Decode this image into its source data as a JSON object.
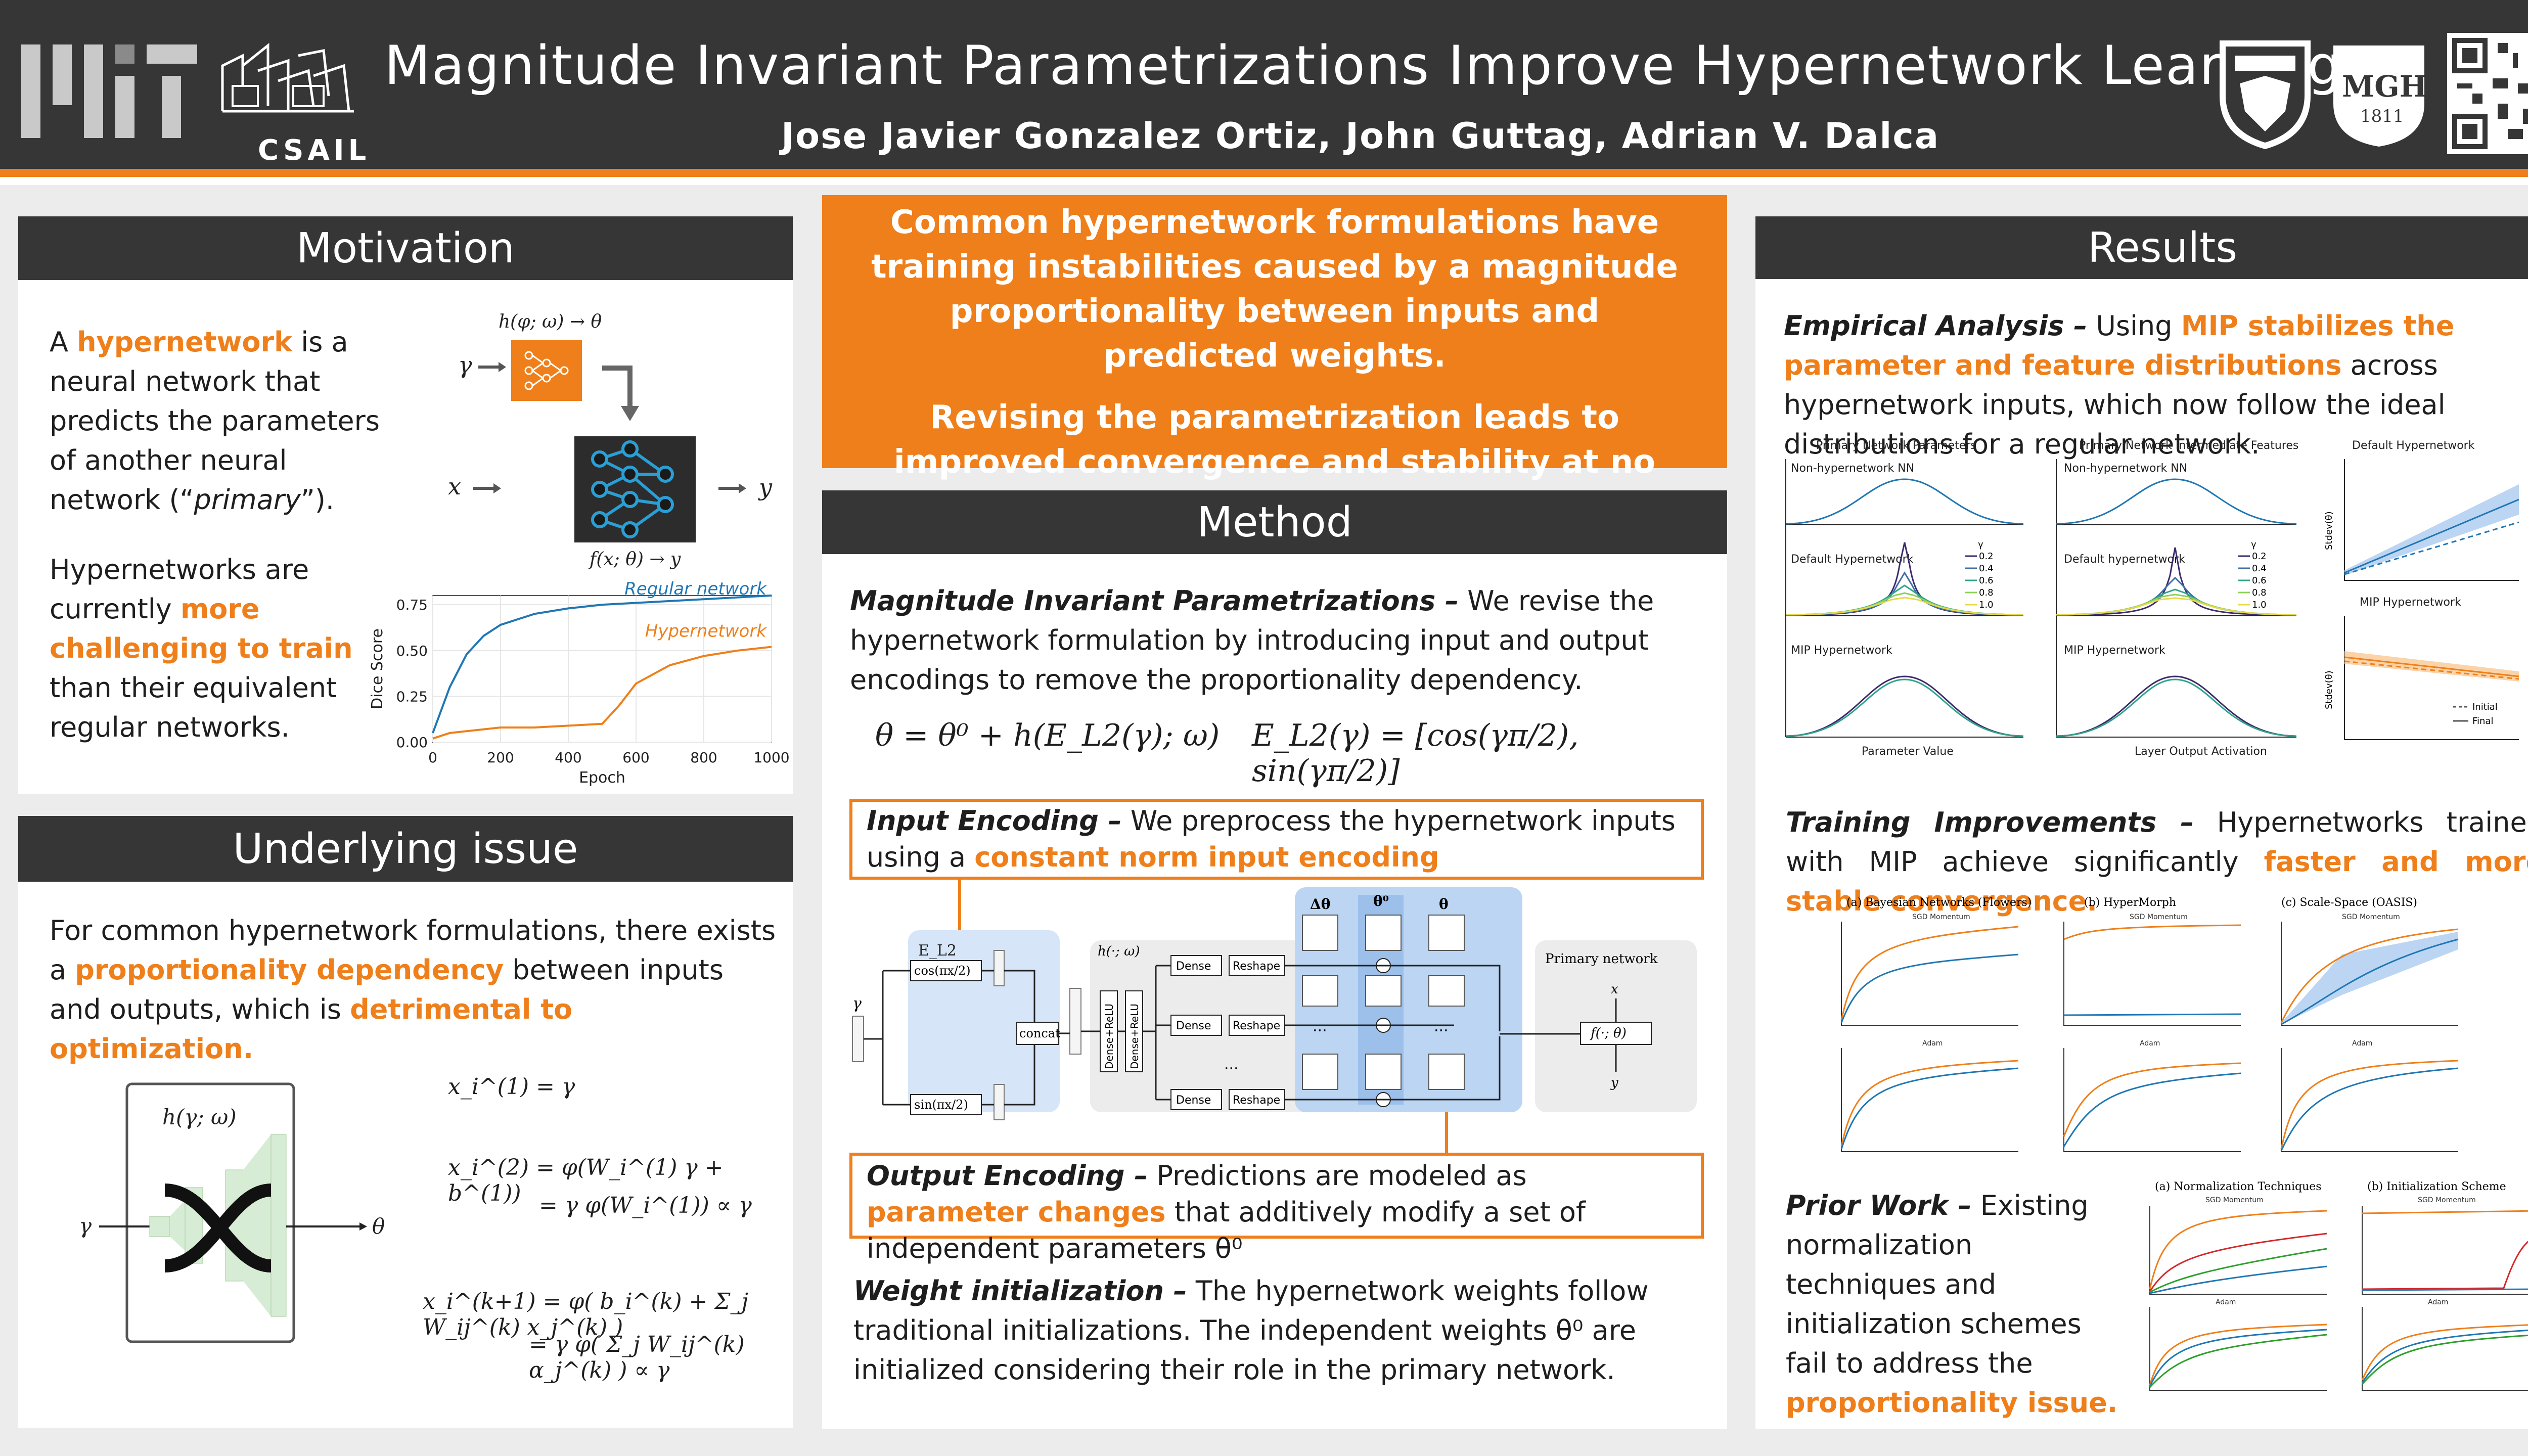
{
  "header": {
    "title": "Magnitude Invariant Parametrizations Improve Hypernetwork Learning",
    "authors": "Jose Javier Gonzalez Ortiz, John Guttag, Adrian V. Dalca",
    "csail_label": "CSAIL",
    "mgh_label": "MGH",
    "mgh_year": "1811",
    "colors": {
      "dark": "#363636",
      "accent": "#ef7f1a",
      "blue": "#1f77b4"
    }
  },
  "motivation": {
    "heading": "Motivation",
    "p1": {
      "pre": "A ",
      "hl": "hypernetwork",
      "post": " is a neural network that predicts the parameters of another neural network (“",
      "it": "primary",
      "end": "”)."
    },
    "p2": {
      "pre": "Hypernetworks are currently ",
      "hl": "more challenging to train",
      "post": " than their equivalent regular networks."
    },
    "diagram": {
      "top_label": "h(φ; ω) → θ",
      "gamma": "γ",
      "x": "x",
      "y": "y",
      "bottom_label": "f(x; θ) → y"
    }
  },
  "underlying": {
    "heading": "Underlying issue",
    "p": {
      "pre": "For common hypernetwork formulations, there exists a ",
      "hl": "proportionality dependency",
      "mid": " between inputs and outputs, which is ",
      "hl2": "detrimental to optimization."
    },
    "net_label": "h(γ; ω)",
    "in_label": "γ",
    "out_label": "θ",
    "eq1": "x_i^(1) = γ",
    "eq2a": "x_i^(2) = φ(W_i^(1) γ + b^(1))",
    "eq2b": "= γ φ(W_i^(1)) ∝ γ",
    "eq3a": "x_i^(k+1) = φ( b_i^(k) + Σ_j W_ij^(k) x_j^(k) )",
    "eq3b": "= γ φ( Σ_j W_ij^(k) α_j^(k) ) ∝ γ"
  },
  "banner": {
    "line1": "Common hypernetwork formulations have training instabilities caused by a magnitude proportionality between inputs and predicted weights.",
    "line2": "Revising the parametrization leads to improved convergence and stability at no additional cost."
  },
  "method": {
    "heading": "Method",
    "mip": {
      "bi": "Magnitude Invariant Parametrizations –",
      "rest": " We revise the hypernetwork formulation by introducing input and output encodings to remove the proportionality dependency."
    },
    "eq_theta": "θ = θ⁰ + h(E_L2(γ); ω)",
    "eq_enc": "E_L2(γ) = [cos(γπ/2), sin(γπ/2)]",
    "input_enc": {
      "bi": "Input Encoding –",
      "rest": " We preprocess the hypernetwork inputs using a ",
      "hl": "constant norm input encoding"
    },
    "output_enc": {
      "bi": "Output Encoding –",
      "rest": " Predictions are modeled as ",
      "hl": "parameter changes",
      "rest2": " that additively modify a set of independent parameters θ⁰"
    },
    "weight_init": {
      "bi": "Weight initialization –",
      "rest": " The hypernetwork weights follow traditional initializations. The independent weights θ⁰ are initialized considering their role in the primary network."
    },
    "diagram": {
      "el2": "E_L2",
      "cos": "cos(πx/2)",
      "sin": "sin(πx/2)",
      "concat": "concat",
      "h": "h(·; ω)",
      "dense_relu": "Dense+ReLU",
      "dense": "Dense",
      "reshape": "Reshape",
      "dtheta": "Δθ",
      "theta0": "θ⁰",
      "theta": "θ",
      "primary": "Primary network",
      "f": "f(·; θ)",
      "gamma": "γ",
      "x": "x",
      "y": "y",
      "dots": "..."
    }
  },
  "results": {
    "heading": "Results",
    "empirical": {
      "bi": "Empirical Analysis –",
      "rest": " Using ",
      "hl": "MIP stabilizes the parameter and feature distributions",
      "rest2": " across hypernetwork inputs, which now follow the ideal distributions for a regular network."
    },
    "training": {
      "bi": "Training Improvements –",
      "rest": " Hypernetworks trained with MIP achieve significantly ",
      "hl": "faster and more stable convergence."
    },
    "prior": {
      "bi": "Prior Work –",
      "rest": " Existing normalization techniques and initialization schemes fail to address the ",
      "hl": "proportionality issue."
    },
    "dist_titles": [
      "Primary Network Parameters",
      "Primary Network Intermediate Features"
    ],
    "dist_rows": [
      "Non-hypernetwork NN",
      "Default Hypernetwork",
      "MIP Hypernetwork"
    ],
    "dist_rows_b": [
      "Non-hypernetwork NN",
      "Default hypernetwork",
      "MIP Hypernetwork"
    ],
    "dist_xlabels": [
      "Parameter Value",
      "Layer Output Activation"
    ],
    "gamma_legend": [
      "γ",
      "0.2",
      "0.4",
      "0.6",
      "0.8",
      "1.0"
    ],
    "std_titles": [
      "Default Hypernetwork",
      "MIP Hypernetwork"
    ],
    "std_ylabel": "Stdev(θ)",
    "std_legend": [
      "Initial",
      "Final"
    ],
    "training_titles": [
      "(a) Bayesian Networks (Flowers)",
      "(b) HyperMorph",
      "(c) Scale-Space (OASIS)"
    ],
    "prior_titles": [
      "(a) Normalization Techniques",
      "(b) Initialization Scheme"
    ],
    "sgd": "SGD Momentum",
    "adam": "Adam"
  },
  "chart_data": [
    {
      "type": "line",
      "title": "",
      "xlabel": "Epoch",
      "ylabel": "Dice Score",
      "xlim": [
        0,
        1000
      ],
      "ylim": [
        0,
        0.8
      ],
      "xticks": [
        0,
        200,
        400,
        600,
        800,
        1000
      ],
      "yticks": [
        0.0,
        0.25,
        0.5,
        0.75
      ],
      "series": [
        {
          "name": "Regular network",
          "color": "#1f77b4",
          "x": [
            0,
            50,
            100,
            150,
            200,
            300,
            400,
            500,
            600,
            700,
            800,
            900,
            1000
          ],
          "values": [
            0.05,
            0.3,
            0.48,
            0.58,
            0.64,
            0.7,
            0.73,
            0.75,
            0.76,
            0.77,
            0.78,
            0.79,
            0.8
          ]
        },
        {
          "name": "Hypernetwork",
          "color": "#ef7f1a",
          "x": [
            0,
            50,
            100,
            150,
            200,
            300,
            400,
            500,
            550,
            600,
            700,
            800,
            900,
            1000
          ],
          "values": [
            0.02,
            0.05,
            0.06,
            0.07,
            0.08,
            0.08,
            0.09,
            0.1,
            0.2,
            0.32,
            0.42,
            0.47,
            0.5,
            0.52
          ]
        }
      ]
    }
  ]
}
